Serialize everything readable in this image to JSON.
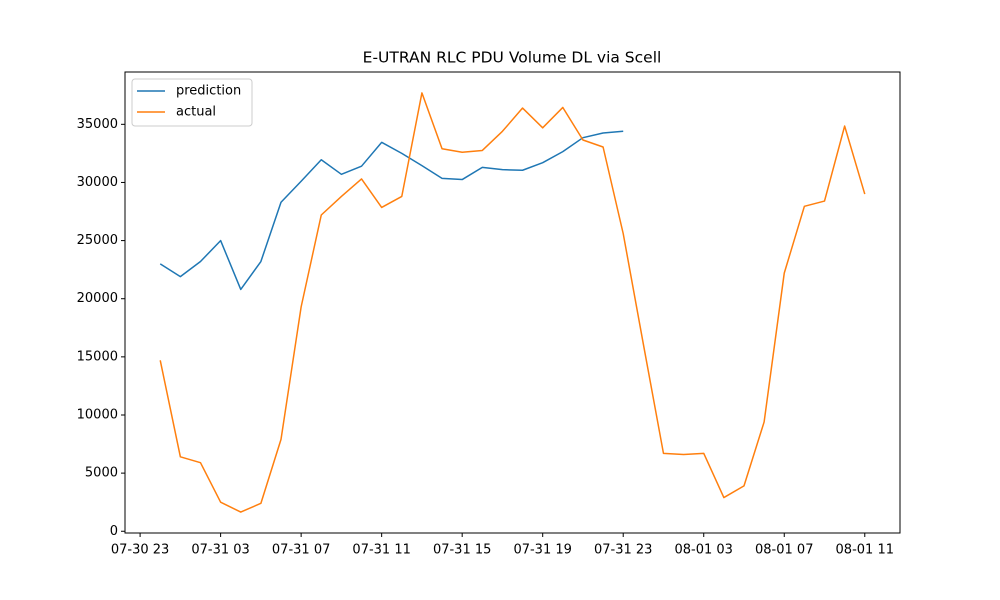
{
  "chart_data": {
    "type": "line",
    "title": "E-UTRAN RLC PDU Volume DL via Scell",
    "x": [
      "07-31 00",
      "07-31 01",
      "07-31 02",
      "07-31 03",
      "07-31 04",
      "07-31 05",
      "07-31 06",
      "07-31 07",
      "07-31 08",
      "07-31 09",
      "07-31 10",
      "07-31 11",
      "07-31 12",
      "07-31 13",
      "07-31 14",
      "07-31 15",
      "07-31 16",
      "07-31 17",
      "07-31 18",
      "07-31 19",
      "07-31 20",
      "07-31 21",
      "07-31 22",
      "07-31 23",
      "08-01 00",
      "08-01 01",
      "08-01 02",
      "08-01 03",
      "08-01 04",
      "08-01 05",
      "08-01 06",
      "08-01 07",
      "08-01 08",
      "08-01 09",
      "08-01 10",
      "08-01 11"
    ],
    "series": [
      {
        "name": "prediction",
        "color": "#1f77b4",
        "values": [
          23000,
          21900,
          23200,
          25000,
          20800,
          23200,
          28300,
          30100,
          31950,
          30700,
          31400,
          33450,
          32500,
          31450,
          30350,
          30250,
          31300,
          31100,
          31050,
          31700,
          32650,
          33850,
          34250,
          34400,
          null,
          null,
          null,
          null,
          null,
          null,
          null,
          null,
          null,
          null,
          null,
          null
        ]
      },
      {
        "name": "actual",
        "color": "#ff7f0e",
        "values": [
          14700,
          6400,
          5900,
          2500,
          1650,
          2400,
          7900,
          19300,
          27200,
          28800,
          30300,
          27850,
          28800,
          37700,
          32900,
          32600,
          32750,
          34400,
          36400,
          34700,
          36450,
          33650,
          33050,
          25600,
          16100,
          6700,
          6600,
          6700,
          2900,
          3900,
          9400,
          22200,
          27950,
          28400,
          34850,
          29000
        ]
      }
    ],
    "xlim": [
      "07-30 22:15",
      "08-01 12:45"
    ],
    "xticks": [
      "07-30 23",
      "07-31 03",
      "07-31 07",
      "07-31 11",
      "07-31 15",
      "07-31 19",
      "07-31 23",
      "08-01 03",
      "08-01 07",
      "08-01 11"
    ],
    "ylim": [
      -150,
      39500
    ],
    "yticks": [
      0,
      5000,
      10000,
      15000,
      20000,
      25000,
      30000,
      35000
    ],
    "legend": "upper left",
    "grid": false
  }
}
